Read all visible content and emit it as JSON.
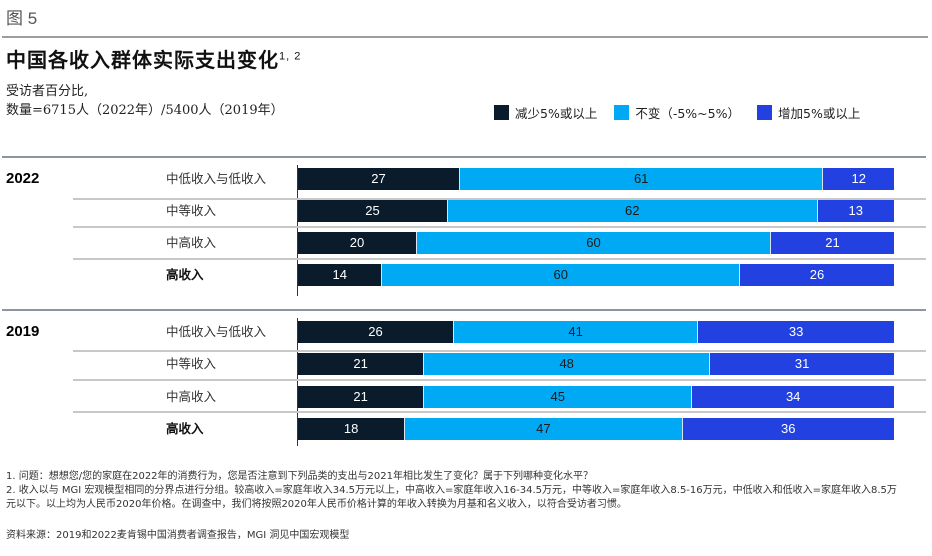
{
  "figure_label": "图 5",
  "title": "中国各收入群体实际支出变化",
  "title_sup": "1, 2",
  "subtitle_line1": "受访者百分比,",
  "subtitle_line2": "数量=6715人（2022年）/5400人（2019年）",
  "colors": {
    "decrease": "#0a1c2c",
    "unchanged": "#00a9f4",
    "increase": "#2341e0"
  },
  "chart_data": {
    "type": "bar",
    "orientation": "horizontal",
    "stacked": true,
    "title": "中国各收入群体实际支出变化",
    "xlabel": "",
    "ylabel": "",
    "unit": "受访者百分比",
    "xlim": [
      0,
      100
    ],
    "grid": false,
    "legend_position": "top-right",
    "legend": [
      "减少5%或以上",
      "不变（-5%~5%）",
      "增加5%或以上"
    ],
    "groups": [
      {
        "year": "2022",
        "categories": [
          "中低收入与低收入",
          "中等收入",
          "中高收入",
          "高收入"
        ],
        "series": [
          {
            "name": "减少5%或以上",
            "values": [
              27,
              25,
              20,
              14
            ]
          },
          {
            "name": "不变（-5%~5%）",
            "values": [
              61,
              62,
              60,
              60
            ]
          },
          {
            "name": "增加5%或以上",
            "values": [
              12,
              13,
              21,
              26
            ]
          }
        ]
      },
      {
        "year": "2019",
        "categories": [
          "中低收入与低收入",
          "中等收入",
          "中高收入",
          "高收入"
        ],
        "series": [
          {
            "name": "减少5%或以上",
            "values": [
              26,
              21,
              21,
              18
            ]
          },
          {
            "name": "不变（-5%~5%）",
            "values": [
              41,
              48,
              45,
              47
            ]
          },
          {
            "name": "增加5%或以上",
            "values": [
              33,
              31,
              34,
              36
            ]
          }
        ]
      }
    ]
  },
  "footnotes": [
    "1. 问题：想想您/您的家庭在2022年的消费行为，您是否注意到下列品类的支出与2021年相比发生了变化？属于下列哪种变化水平？",
    "2. 收入以与 MGI 宏观模型相同的分界点进行分组。较高收入=家庭年收入34.5万元以上，中高收入=家庭年收入16-34.5万元，中等收入=家庭年收入8.5-16万元，中低收入和低收入=家庭年收入8.5万元以下。以上均为人民币2020年价格。在调查中，我们将按照2020年人民币价格计算的年收入转换为月基和名义收入，以符合受访者习惯。"
  ],
  "source": "资料来源：2019和2022麦肯锡中国消费者调查报告，MGI 洞见中国宏观模型"
}
